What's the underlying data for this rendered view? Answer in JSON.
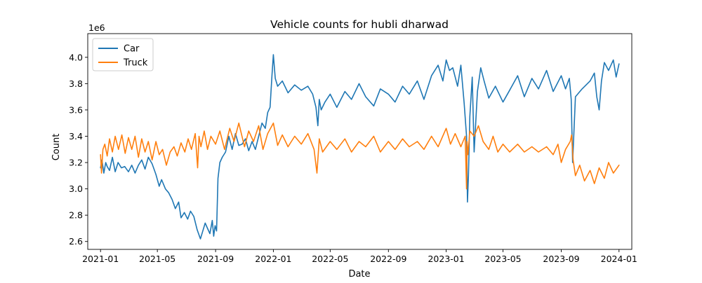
{
  "chart_data": {
    "type": "line",
    "title": "Vehicle counts for hubli dharwad",
    "xlabel": "Date",
    "ylabel": "Count",
    "y_offset_label": "1e6",
    "y_multiplier": 1000000,
    "xlim": [
      "2020-12-05",
      "2024-01-28"
    ],
    "ylim": [
      2.54,
      4.18
    ],
    "x_ticks": [
      "2021-01",
      "2021-05",
      "2021-09",
      "2022-01",
      "2022-05",
      "2022-09",
      "2023-01",
      "2023-05",
      "2023-09",
      "2024-01"
    ],
    "y_ticks": [
      2.6,
      2.8,
      3.0,
      3.2,
      3.4,
      3.6,
      3.8,
      4.0
    ],
    "legend_position": "upper-left",
    "grid": false,
    "series": [
      {
        "name": "Car",
        "color": "#1f77b4",
        "x": [
          "2021-01-01",
          "2021-01-04",
          "2021-01-08",
          "2021-01-12",
          "2021-01-15",
          "2021-01-20",
          "2021-01-26",
          "2021-02-01",
          "2021-02-07",
          "2021-02-14",
          "2021-02-21",
          "2021-03-01",
          "2021-03-08",
          "2021-03-15",
          "2021-03-22",
          "2021-03-29",
          "2021-04-05",
          "2021-04-12",
          "2021-04-20",
          "2021-04-28",
          "2021-05-05",
          "2021-05-10",
          "2021-05-18",
          "2021-05-25",
          "2021-06-01",
          "2021-06-08",
          "2021-06-15",
          "2021-06-20",
          "2021-06-27",
          "2021-07-04",
          "2021-07-10",
          "2021-07-17",
          "2021-07-24",
          "2021-07-31",
          "2021-08-05",
          "2021-08-10",
          "2021-08-15",
          "2021-08-20",
          "2021-08-25",
          "2021-08-28",
          "2021-08-31",
          "2021-09-03",
          "2021-09-06",
          "2021-09-10",
          "2021-09-15",
          "2021-09-22",
          "2021-09-29",
          "2021-10-06",
          "2021-10-13",
          "2021-10-20",
          "2021-10-27",
          "2021-11-03",
          "2021-11-10",
          "2021-11-17",
          "2021-11-24",
          "2021-12-01",
          "2021-12-08",
          "2021-12-15",
          "2021-12-20",
          "2021-12-25",
          "2021-12-29",
          "2022-01-01",
          "2022-01-05",
          "2022-01-10",
          "2022-01-20",
          "2022-02-01",
          "2022-02-15",
          "2022-03-01",
          "2022-03-15",
          "2022-03-25",
          "2022-04-01",
          "2022-04-05",
          "2022-04-08",
          "2022-04-12",
          "2022-04-20",
          "2022-05-01",
          "2022-05-15",
          "2022-06-01",
          "2022-06-15",
          "2022-07-01",
          "2022-07-15",
          "2022-08-01",
          "2022-08-15",
          "2022-09-01",
          "2022-09-15",
          "2022-10-01",
          "2022-10-15",
          "2022-11-01",
          "2022-11-15",
          "2022-12-01",
          "2022-12-15",
          "2022-12-25",
          "2023-01-01",
          "2023-01-08",
          "2023-01-15",
          "2023-01-25",
          "2023-02-01",
          "2023-02-08",
          "2023-02-13",
          "2023-02-15",
          "2023-02-17",
          "2023-02-20",
          "2023-02-25",
          "2023-03-01",
          "2023-03-08",
          "2023-03-15",
          "2023-03-22",
          "2023-04-01",
          "2023-04-15",
          "2023-05-01",
          "2023-05-15",
          "2023-06-01",
          "2023-06-15",
          "2023-07-01",
          "2023-07-15",
          "2023-08-01",
          "2023-08-15",
          "2023-09-01",
          "2023-09-10",
          "2023-09-18",
          "2023-09-22",
          "2023-09-25",
          "2023-10-01",
          "2023-10-15",
          "2023-11-01",
          "2023-11-10",
          "2023-11-15",
          "2023-11-20",
          "2023-11-25",
          "2023-12-01",
          "2023-12-10",
          "2023-12-20",
          "2023-12-26",
          "2024-01-01"
        ],
        "y": [
          3.16,
          3.22,
          3.12,
          3.2,
          3.17,
          3.14,
          3.24,
          3.13,
          3.2,
          3.16,
          3.17,
          3.13,
          3.18,
          3.12,
          3.18,
          3.22,
          3.15,
          3.24,
          3.19,
          3.11,
          3.02,
          3.07,
          3.0,
          2.97,
          2.92,
          2.85,
          2.9,
          2.78,
          2.82,
          2.77,
          2.83,
          2.79,
          2.69,
          2.62,
          2.68,
          2.74,
          2.7,
          2.66,
          2.76,
          2.64,
          2.72,
          2.68,
          3.08,
          3.2,
          3.24,
          3.28,
          3.4,
          3.3,
          3.42,
          3.33,
          3.34,
          3.38,
          3.29,
          3.36,
          3.3,
          3.4,
          3.5,
          3.46,
          3.58,
          3.62,
          3.86,
          4.02,
          3.84,
          3.78,
          3.82,
          3.73,
          3.79,
          3.75,
          3.78,
          3.72,
          3.62,
          3.48,
          3.68,
          3.6,
          3.66,
          3.72,
          3.62,
          3.74,
          3.68,
          3.8,
          3.7,
          3.63,
          3.76,
          3.72,
          3.66,
          3.78,
          3.72,
          3.82,
          3.68,
          3.86,
          3.94,
          3.82,
          3.98,
          3.9,
          3.92,
          3.78,
          3.94,
          3.65,
          3.4,
          2.9,
          3.1,
          3.55,
          3.85,
          3.28,
          3.74,
          3.92,
          3.82,
          3.69,
          3.78,
          3.66,
          3.75,
          3.86,
          3.7,
          3.84,
          3.76,
          3.9,
          3.74,
          3.86,
          3.76,
          3.84,
          3.68,
          3.2,
          3.7,
          3.76,
          3.82,
          3.88,
          3.7,
          3.6,
          3.82,
          3.96,
          3.9,
          3.98,
          3.85,
          3.95
        ]
      },
      {
        "name": "Truck",
        "color": "#ff7f0e",
        "x": [
          "2021-01-01",
          "2021-01-03",
          "2021-01-06",
          "2021-01-10",
          "2021-01-15",
          "2021-01-20",
          "2021-01-26",
          "2021-02-01",
          "2021-02-08",
          "2021-02-15",
          "2021-02-22",
          "2021-03-01",
          "2021-03-08",
          "2021-03-15",
          "2021-03-22",
          "2021-03-29",
          "2021-04-05",
          "2021-04-12",
          "2021-04-20",
          "2021-04-28",
          "2021-05-05",
          "2021-05-12",
          "2021-05-20",
          "2021-05-28",
          "2021-06-05",
          "2021-06-12",
          "2021-06-20",
          "2021-06-28",
          "2021-07-05",
          "2021-07-12",
          "2021-07-20",
          "2021-07-25",
          "2021-07-28",
          "2021-08-01",
          "2021-08-08",
          "2021-08-15",
          "2021-08-22",
          "2021-09-01",
          "2021-09-10",
          "2021-09-20",
          "2021-10-01",
          "2021-10-10",
          "2021-10-20",
          "2021-11-01",
          "2021-11-10",
          "2021-11-20",
          "2021-12-01",
          "2021-12-10",
          "2021-12-20",
          "2022-01-01",
          "2022-01-10",
          "2022-01-20",
          "2022-02-01",
          "2022-02-15",
          "2022-03-01",
          "2022-03-15",
          "2022-03-28",
          "2022-04-03",
          "2022-04-08",
          "2022-04-15",
          "2022-05-01",
          "2022-05-15",
          "2022-06-01",
          "2022-06-15",
          "2022-07-01",
          "2022-07-15",
          "2022-08-01",
          "2022-08-15",
          "2022-09-01",
          "2022-09-15",
          "2022-10-01",
          "2022-10-15",
          "2022-11-01",
          "2022-11-15",
          "2022-12-01",
          "2022-12-15",
          "2023-01-01",
          "2023-01-10",
          "2023-01-20",
          "2023-02-01",
          "2023-02-10",
          "2023-02-13",
          "2023-02-14",
          "2023-02-16",
          "2023-02-20",
          "2023-03-01",
          "2023-03-10",
          "2023-03-20",
          "2023-04-01",
          "2023-04-10",
          "2023-04-20",
          "2023-05-01",
          "2023-05-15",
          "2023-06-01",
          "2023-06-15",
          "2023-07-01",
          "2023-07-15",
          "2023-08-01",
          "2023-08-15",
          "2023-08-25",
          "2023-09-01",
          "2023-09-10",
          "2023-09-20",
          "2023-09-23",
          "2023-09-26",
          "2023-10-01",
          "2023-10-10",
          "2023-10-20",
          "2023-11-01",
          "2023-11-10",
          "2023-11-20",
          "2023-12-01",
          "2023-12-10",
          "2023-12-20",
          "2024-01-01"
        ],
        "y": [
          3.26,
          3.12,
          3.3,
          3.34,
          3.25,
          3.38,
          3.28,
          3.4,
          3.3,
          3.41,
          3.27,
          3.39,
          3.3,
          3.4,
          3.24,
          3.38,
          3.28,
          3.36,
          3.22,
          3.36,
          3.26,
          3.3,
          3.18,
          3.28,
          3.32,
          3.25,
          3.35,
          3.28,
          3.38,
          3.3,
          3.42,
          3.16,
          3.4,
          3.32,
          3.44,
          3.3,
          3.4,
          3.34,
          3.44,
          3.3,
          3.46,
          3.36,
          3.5,
          3.32,
          3.44,
          3.36,
          3.48,
          3.3,
          3.42,
          3.5,
          3.33,
          3.41,
          3.32,
          3.4,
          3.34,
          3.42,
          3.3,
          3.12,
          3.38,
          3.28,
          3.36,
          3.3,
          3.38,
          3.28,
          3.36,
          3.32,
          3.4,
          3.28,
          3.36,
          3.3,
          3.38,
          3.32,
          3.36,
          3.3,
          3.4,
          3.32,
          3.46,
          3.34,
          3.42,
          3.32,
          3.4,
          3.0,
          3.36,
          3.26,
          3.44,
          3.4,
          3.48,
          3.36,
          3.3,
          3.4,
          3.28,
          3.34,
          3.28,
          3.34,
          3.28,
          3.32,
          3.28,
          3.32,
          3.26,
          3.34,
          3.2,
          3.3,
          3.36,
          3.41,
          3.22,
          3.1,
          3.18,
          3.06,
          3.14,
          3.04,
          3.16,
          3.08,
          3.2,
          3.12,
          3.18
        ]
      }
    ]
  }
}
